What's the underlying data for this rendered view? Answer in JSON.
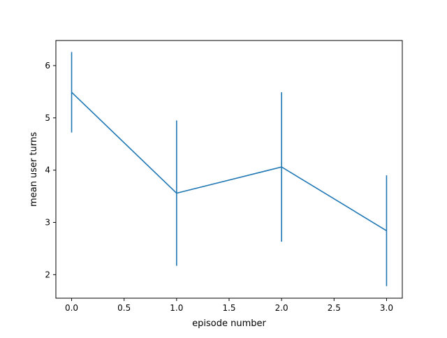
{
  "chart_data": {
    "type": "line",
    "title": "",
    "xlabel": "episode number",
    "ylabel": "mean user turns",
    "xlim": [
      -0.15,
      3.15
    ],
    "ylim": [
      1.55,
      6.48
    ],
    "xticks": [
      0.0,
      0.5,
      1.0,
      1.5,
      2.0,
      2.5,
      3.0
    ],
    "xtick_labels": [
      "0.0",
      "0.5",
      "1.0",
      "1.5",
      "2.0",
      "2.5",
      "3.0"
    ],
    "yticks": [
      2,
      3,
      4,
      5,
      6
    ],
    "ytick_labels": [
      "2",
      "3",
      "4",
      "5",
      "6"
    ],
    "grid": false,
    "legend": "none",
    "series": [
      {
        "x": [
          0,
          1,
          2,
          3
        ],
        "y": [
          5.49,
          3.56,
          4.06,
          2.84
        ],
        "yerr": [
          0.77,
          1.39,
          1.43,
          1.06
        ],
        "color": "#1f77b4"
      }
    ]
  }
}
